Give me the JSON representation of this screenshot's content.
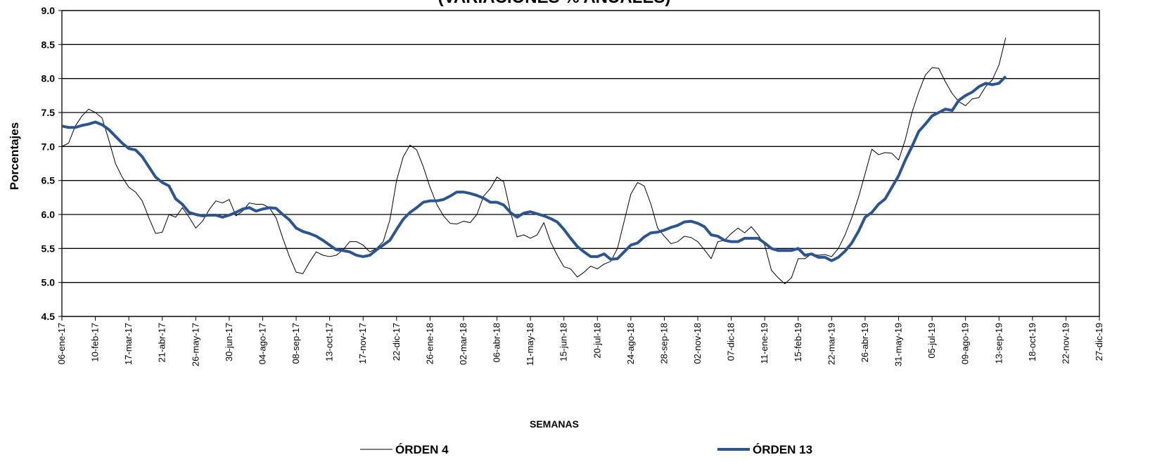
{
  "chart_data": {
    "type": "line",
    "title": "(VARIACIONES % ANUALES)",
    "x_label": "SEMANAS",
    "y_label": "Porcentajes",
    "categories": [
      "06-ene-17",
      null,
      null,
      null,
      null,
      "10-feb-17",
      null,
      null,
      null,
      null,
      "17-mar-17",
      null,
      null,
      null,
      null,
      "21-abr-17",
      null,
      null,
      null,
      null,
      "26-may-17",
      null,
      null,
      null,
      null,
      "30-jun-17",
      null,
      null,
      null,
      null,
      "04-ago-17",
      null,
      null,
      null,
      null,
      "08-sep-17",
      null,
      null,
      null,
      null,
      "13-oct-17",
      null,
      null,
      null,
      null,
      "17-nov-17",
      null,
      null,
      null,
      null,
      "22-dic-17",
      null,
      null,
      null,
      null,
      "26-ene-18",
      null,
      null,
      null,
      null,
      "02-mar-18",
      null,
      null,
      null,
      null,
      "06-abr-18",
      null,
      null,
      null,
      null,
      "11-may-18",
      null,
      null,
      null,
      null,
      "15-jun-18",
      null,
      null,
      null,
      null,
      "20-jul-18",
      null,
      null,
      null,
      null,
      "24-ago-18",
      null,
      null,
      null,
      null,
      "28-sep-18",
      null,
      null,
      null,
      null,
      "02-nov-18",
      null,
      null,
      null,
      null,
      "07-dic-18",
      null,
      null,
      null,
      null,
      "11-ene-19",
      null,
      null,
      null,
      null,
      "15-feb-19",
      null,
      null,
      null,
      null,
      "22-mar-19",
      null,
      null,
      null,
      null,
      "26-abr-19",
      null,
      null,
      null,
      null,
      "31-may-19",
      null,
      null,
      null,
      null,
      "05-jul-19",
      null,
      null,
      null,
      null,
      "09-ago-19",
      null,
      null,
      null,
      null,
      "13-sep-19",
      null,
      null,
      null,
      null,
      "18-oct-19",
      null,
      null,
      null,
      null,
      "22-nov-19",
      null,
      null,
      null,
      null,
      "27-dic-19"
    ],
    "series": [
      {
        "name": "ÓRDEN 4",
        "color": "#000000",
        "width": 1,
        "values": [
          7.0,
          7.05,
          7.3,
          7.45,
          7.55,
          7.5,
          7.42,
          7.1,
          6.75,
          6.55,
          6.4,
          6.33,
          6.2,
          5.95,
          5.72,
          5.74,
          6.0,
          5.96,
          6.1,
          5.96,
          5.8,
          5.9,
          6.07,
          6.2,
          6.17,
          6.22,
          5.98,
          6.05,
          6.17,
          6.15,
          6.15,
          6.1,
          5.95,
          5.65,
          5.38,
          5.15,
          5.13,
          5.3,
          5.45,
          5.4,
          5.38,
          5.4,
          5.48,
          5.6,
          5.6,
          5.55,
          5.45,
          5.5,
          5.6,
          5.92,
          6.5,
          6.85,
          7.02,
          6.95,
          6.7,
          6.4,
          6.15,
          5.98,
          5.87,
          5.86,
          5.9,
          5.88,
          6.0,
          6.27,
          6.38,
          6.55,
          6.48,
          6.05,
          5.67,
          5.7,
          5.65,
          5.7,
          5.88,
          5.6,
          5.4,
          5.23,
          5.2,
          5.08,
          5.15,
          5.24,
          5.2,
          5.27,
          5.31,
          5.5,
          5.9,
          6.3,
          6.47,
          6.42,
          6.15,
          5.8,
          5.68,
          5.57,
          5.6,
          5.68,
          5.66,
          5.6,
          5.48,
          5.35,
          5.6,
          5.62,
          5.72,
          5.8,
          5.73,
          5.82,
          5.7,
          5.55,
          5.18,
          5.07,
          4.98,
          5.07,
          5.35,
          5.35,
          5.42,
          5.4,
          5.41,
          5.38,
          5.5,
          5.7,
          5.95,
          6.25,
          6.6,
          6.96,
          6.88,
          6.91,
          6.9,
          6.8,
          7.1,
          7.5,
          7.8,
          8.05,
          8.16,
          8.15,
          7.95,
          7.78,
          7.66,
          7.6,
          7.7,
          7.72,
          7.88,
          7.98,
          8.2,
          8.6,
          null,
          null,
          null,
          null,
          null,
          null,
          null,
          null,
          null,
          null,
          null,
          null,
          null,
          null
        ]
      },
      {
        "name": "ÓRDEN 13",
        "color": "#2a5590",
        "width": 4,
        "values": [
          7.3,
          7.28,
          7.28,
          7.31,
          7.33,
          7.36,
          7.32,
          7.25,
          7.15,
          7.05,
          6.97,
          6.95,
          6.85,
          6.7,
          6.55,
          6.47,
          6.42,
          6.23,
          6.15,
          6.03,
          6.0,
          5.98,
          5.99,
          5.99,
          5.96,
          5.99,
          6.03,
          6.08,
          6.1,
          6.05,
          6.08,
          6.1,
          6.09,
          6.0,
          5.92,
          5.8,
          5.75,
          5.72,
          5.68,
          5.62,
          5.55,
          5.48,
          5.47,
          5.45,
          5.4,
          5.38,
          5.4,
          5.48,
          5.55,
          5.62,
          5.78,
          5.93,
          6.03,
          6.1,
          6.18,
          6.2,
          6.2,
          6.22,
          6.27,
          6.33,
          6.33,
          6.31,
          6.28,
          6.24,
          6.18,
          6.18,
          6.14,
          6.03,
          5.96,
          6.02,
          6.04,
          6.01,
          5.98,
          5.94,
          5.89,
          5.78,
          5.65,
          5.53,
          5.45,
          5.38,
          5.38,
          5.42,
          5.34,
          5.35,
          5.45,
          5.55,
          5.58,
          5.67,
          5.73,
          5.74,
          5.77,
          5.81,
          5.84,
          5.89,
          5.9,
          5.87,
          5.82,
          5.7,
          5.68,
          5.62,
          5.6,
          5.6,
          5.65,
          5.65,
          5.65,
          5.58,
          5.5,
          5.47,
          5.47,
          5.47,
          5.5,
          5.4,
          5.42,
          5.37,
          5.37,
          5.32,
          5.37,
          5.46,
          5.58,
          5.75,
          5.96,
          6.03,
          6.15,
          6.23,
          6.4,
          6.57,
          6.8,
          7.0,
          7.22,
          7.33,
          7.45,
          7.5,
          7.55,
          7.53,
          7.68,
          7.75,
          7.8,
          7.88,
          7.93,
          7.91,
          7.93,
          8.03,
          null,
          null,
          null,
          null,
          null,
          null,
          null,
          null,
          null,
          null,
          null,
          null,
          null,
          null
        ]
      }
    ],
    "ylim": [
      4.5,
      9.0
    ],
    "yticks": [
      4.5,
      {
        "value": 5,
        "label": "5.0"
      },
      5.5,
      {
        "value": 6,
        "label": "6.0"
      },
      6.5,
      {
        "value": 7,
        "label": "7.0"
      },
      7.5,
      {
        "value": 8,
        "label": "8.0"
      },
      8.5,
      {
        "value": 9,
        "label": "9.0"
      }
    ],
    "grid": true,
    "legend": "bottom"
  }
}
